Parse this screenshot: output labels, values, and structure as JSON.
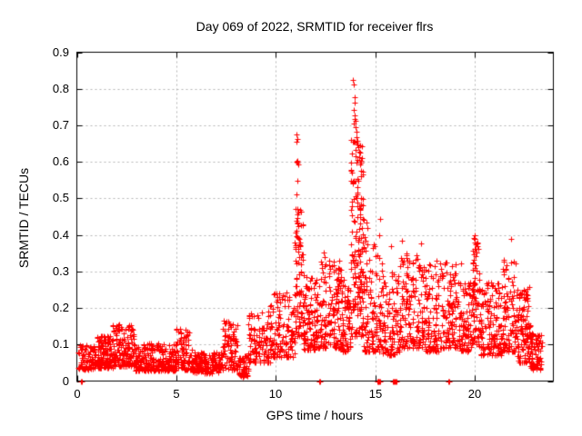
{
  "title": "Day 069 of 2022, SRMTID for receiver flrs",
  "colors": {
    "marker": "#ff0000",
    "axis": "#000000",
    "grid": "#b4b4b4",
    "background": "#ffffff"
  },
  "chart_data": {
    "type": "scatter",
    "title": "Day 069 of 2022, SRMTID for receiver flrs",
    "xlabel": "GPS time / hours",
    "ylabel": "SRMTID / TECUs",
    "xlim": [
      0,
      23.93
    ],
    "ylim": [
      0,
      0.9
    ],
    "x_ticks": [
      0,
      5,
      10,
      15,
      20
    ],
    "x_tick_labels": [
      "0",
      "5",
      "10",
      "15",
      "20"
    ],
    "y_ticks": [
      0,
      0.1,
      0.2,
      0.3,
      0.4,
      0.5,
      0.6,
      0.7,
      0.8,
      0.9
    ],
    "y_tick_labels": [
      "0",
      "0.1",
      "0.2",
      "0.3",
      "0.4",
      "0.5",
      "0.6",
      "0.7",
      "0.8",
      "0.9"
    ],
    "grid": true,
    "grid_style": "dashed",
    "legend": "none",
    "marker": "plus",
    "marker_color": "#ff0000",
    "series_name": "SRMTID",
    "seed": 69,
    "band_segments_format": [
      "t0_hours",
      "t1_hours",
      "n_points",
      "value_min",
      "value_max",
      "skew_toward_min"
    ],
    "band_segments": [
      [
        0.05,
        1.0,
        90,
        0.032,
        0.1,
        1.6
      ],
      [
        1.0,
        1.8,
        120,
        0.035,
        0.125,
        1.5
      ],
      [
        1.8,
        2.9,
        160,
        0.04,
        0.155,
        1.5
      ],
      [
        2.9,
        5.0,
        260,
        0.028,
        0.105,
        1.6
      ],
      [
        5.0,
        5.8,
        90,
        0.03,
        0.145,
        1.5
      ],
      [
        5.8,
        7.3,
        170,
        0.022,
        0.08,
        1.4
      ],
      [
        7.3,
        8.1,
        90,
        0.03,
        0.165,
        1.5
      ],
      [
        8.1,
        8.6,
        50,
        0.012,
        0.07,
        1.2
      ],
      [
        8.6,
        9.7,
        110,
        0.05,
        0.19,
        1.4
      ],
      [
        9.7,
        10.95,
        130,
        0.065,
        0.245,
        1.5
      ],
      [
        10.95,
        11.35,
        80,
        0.12,
        0.48,
        1.2
      ],
      [
        11.35,
        12.2,
        120,
        0.085,
        0.3,
        1.6
      ],
      [
        12.2,
        13.3,
        150,
        0.09,
        0.33,
        1.5
      ],
      [
        13.3,
        13.75,
        70,
        0.08,
        0.28,
        1.4
      ],
      [
        13.75,
        14.4,
        170,
        0.12,
        0.66,
        1.35
      ],
      [
        14.4,
        15.35,
        120,
        0.08,
        0.4,
        1.8
      ],
      [
        15.35,
        16.2,
        100,
        0.07,
        0.3,
        1.5
      ],
      [
        16.2,
        17.2,
        130,
        0.09,
        0.355,
        1.6
      ],
      [
        17.2,
        18.2,
        120,
        0.08,
        0.33,
        1.5
      ],
      [
        18.2,
        19.3,
        130,
        0.09,
        0.33,
        1.7
      ],
      [
        19.3,
        19.85,
        70,
        0.08,
        0.27,
        1.5
      ],
      [
        19.85,
        20.2,
        70,
        0.1,
        0.395,
        1.3
      ],
      [
        20.2,
        21.3,
        140,
        0.07,
        0.27,
        1.4
      ],
      [
        21.3,
        22.05,
        100,
        0.08,
        0.33,
        1.7
      ],
      [
        22.05,
        22.75,
        120,
        0.05,
        0.26,
        1.5
      ],
      [
        22.75,
        23.35,
        80,
        0.03,
        0.135,
        1.3
      ]
    ],
    "peak_points": [
      [
        11.03,
        0.675
      ],
      [
        11.07,
        0.662
      ],
      [
        11.05,
        0.655
      ],
      [
        11.04,
        0.6
      ],
      [
        11.06,
        0.603
      ],
      [
        11.08,
        0.598
      ],
      [
        11.1,
        0.592
      ],
      [
        11.07,
        0.548
      ],
      [
        11.04,
        0.51
      ],
      [
        11.12,
        0.462
      ],
      [
        11.06,
        0.455
      ],
      [
        11.09,
        0.447
      ],
      [
        11.05,
        0.44
      ],
      [
        11.08,
        0.432
      ],
      [
        11.1,
        0.425
      ],
      [
        12.42,
        0.352
      ],
      [
        12.45,
        0.34
      ],
      [
        13.88,
        0.825
      ],
      [
        13.9,
        0.812
      ],
      [
        13.93,
        0.778
      ],
      [
        13.95,
        0.762
      ],
      [
        13.9,
        0.742
      ],
      [
        13.94,
        0.728
      ],
      [
        13.96,
        0.718
      ],
      [
        13.98,
        0.712
      ],
      [
        13.92,
        0.705
      ],
      [
        14.0,
        0.695
      ],
      [
        14.03,
        0.682
      ],
      [
        14.05,
        0.668
      ],
      [
        13.97,
        0.655
      ],
      [
        14.08,
        0.648
      ],
      [
        14.12,
        0.64
      ],
      [
        14.02,
        0.632
      ],
      [
        14.16,
        0.628
      ],
      [
        14.2,
        0.612
      ],
      [
        14.1,
        0.605
      ],
      [
        14.06,
        0.598
      ],
      [
        14.55,
        0.435
      ],
      [
        14.6,
        0.42
      ],
      [
        15.25,
        0.445
      ],
      [
        15.8,
        0.37
      ],
      [
        16.32,
        0.385
      ],
      [
        16.55,
        0.35
      ],
      [
        17.3,
        0.377
      ],
      [
        18.05,
        0.33
      ],
      [
        19.0,
        0.32
      ],
      [
        19.97,
        0.398
      ],
      [
        20.0,
        0.388
      ],
      [
        20.02,
        0.375
      ],
      [
        19.99,
        0.362
      ],
      [
        20.05,
        0.352
      ],
      [
        20.03,
        0.342
      ],
      [
        19.95,
        0.332
      ],
      [
        21.45,
        0.332
      ],
      [
        21.82,
        0.39
      ],
      [
        21.95,
        0.328
      ]
    ],
    "zero_points": [
      [
        0.22,
        0
      ],
      [
        0.27,
        0
      ],
      [
        12.18,
        0
      ],
      [
        12.23,
        0
      ],
      [
        15.08,
        0
      ],
      [
        15.12,
        0
      ],
      [
        15.16,
        0
      ],
      [
        15.2,
        0
      ],
      [
        15.24,
        0
      ],
      [
        15.86,
        0
      ],
      [
        15.9,
        0
      ],
      [
        15.94,
        0
      ],
      [
        15.99,
        0
      ],
      [
        16.03,
        0
      ],
      [
        18.66,
        0
      ],
      [
        18.71,
        0
      ]
    ]
  }
}
